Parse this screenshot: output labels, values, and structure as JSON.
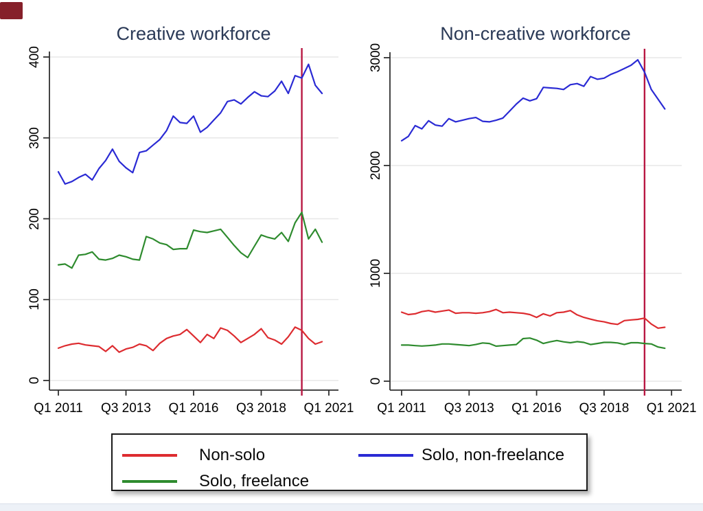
{
  "colors": {
    "red": "#dd2c30",
    "green": "#2e8b2e",
    "blue": "#2a2ad4",
    "vline": "#b81742",
    "title": "#2b3a57",
    "grid": "#e7e7e7",
    "axis": "#2f2f2f",
    "corner_mark": "#86202a",
    "bottom_strip": "#edf1f7"
  },
  "legend": {
    "items": [
      {
        "label": "Non-solo",
        "color_key": "red"
      },
      {
        "label": "Solo, non-freelance",
        "color_key": "blue"
      },
      {
        "label": "Solo, freelance",
        "color_key": "green"
      }
    ]
  },
  "chart_data": [
    {
      "type": "line",
      "title": "Creative workforce",
      "x_tick_labels": [
        "Q1 2011",
        "Q3 2013",
        "Q1 2016",
        "Q3 2018",
        "Q1 2021"
      ],
      "x_tick_indices": [
        0,
        10,
        20,
        30,
        40
      ],
      "ylim": [
        0,
        400
      ],
      "y_ticks": [
        0,
        100,
        200,
        300,
        400
      ],
      "vline_index": 36,
      "series": [
        {
          "name": "Non-solo",
          "color_key": "red",
          "values": [
            40,
            43,
            45,
            46,
            44,
            43,
            42,
            36,
            43,
            35,
            39,
            41,
            45,
            43,
            37,
            46,
            52,
            55,
            57,
            63,
            55,
            47,
            57,
            52,
            65,
            62,
            55,
            47,
            52,
            57,
            64,
            53,
            50,
            45,
            54,
            66,
            62,
            52,
            45,
            48
          ]
        },
        {
          "name": "Solo, freelance",
          "color_key": "green",
          "values": [
            143,
            144,
            139,
            155,
            156,
            159,
            150,
            149,
            151,
            155,
            153,
            150,
            149,
            178,
            175,
            170,
            168,
            162,
            163,
            163,
            186,
            184,
            183,
            185,
            187,
            177,
            167,
            158,
            152,
            166,
            180,
            177,
            175,
            183,
            172,
            195,
            208,
            175,
            187,
            171
          ]
        },
        {
          "name": "Solo, non-freelance",
          "color_key": "blue",
          "values": [
            258,
            243,
            246,
            251,
            255,
            248,
            262,
            272,
            286,
            271,
            263,
            257,
            282,
            284,
            291,
            298,
            309,
            327,
            319,
            318,
            327,
            307,
            313,
            322,
            331,
            345,
            347,
            342,
            350,
            357,
            352,
            351,
            358,
            370,
            355,
            377,
            374,
            391,
            365,
            355
          ]
        }
      ]
    },
    {
      "type": "line",
      "title": "Non-creative workforce",
      "x_tick_labels": [
        "Q1 2011",
        "Q3 2013",
        "Q1 2016",
        "Q3 2018",
        "Q1 2021"
      ],
      "x_tick_indices": [
        0,
        10,
        20,
        30,
        40
      ],
      "ylim": [
        0,
        3000
      ],
      "y_ticks": [
        0,
        1000,
        2000,
        3000
      ],
      "vline_index": 36,
      "series": [
        {
          "name": "Non-solo",
          "color_key": "red",
          "values": [
            640,
            618,
            625,
            645,
            655,
            640,
            650,
            660,
            630,
            635,
            635,
            630,
            635,
            645,
            665,
            635,
            640,
            635,
            630,
            618,
            592,
            625,
            605,
            635,
            640,
            655,
            615,
            592,
            575,
            560,
            550,
            535,
            527,
            562,
            568,
            573,
            585,
            530,
            492,
            500
          ]
        },
        {
          "name": "Solo, freelance",
          "color_key": "green",
          "values": [
            335,
            335,
            330,
            326,
            330,
            335,
            345,
            345,
            340,
            335,
            330,
            340,
            355,
            350,
            325,
            330,
            335,
            340,
            395,
            400,
            380,
            350,
            365,
            377,
            365,
            357,
            367,
            360,
            340,
            350,
            360,
            360,
            355,
            340,
            357,
            357,
            350,
            345,
            317,
            305
          ]
        },
        {
          "name": "Solo, non-freelance",
          "color_key": "blue",
          "values": [
            2230,
            2270,
            2370,
            2340,
            2415,
            2375,
            2365,
            2435,
            2405,
            2420,
            2435,
            2445,
            2410,
            2405,
            2420,
            2440,
            2505,
            2570,
            2625,
            2600,
            2620,
            2725,
            2720,
            2715,
            2705,
            2750,
            2760,
            2735,
            2825,
            2800,
            2810,
            2845,
            2870,
            2900,
            2930,
            2980,
            2865,
            2705,
            2615,
            2525
          ]
        }
      ]
    }
  ]
}
